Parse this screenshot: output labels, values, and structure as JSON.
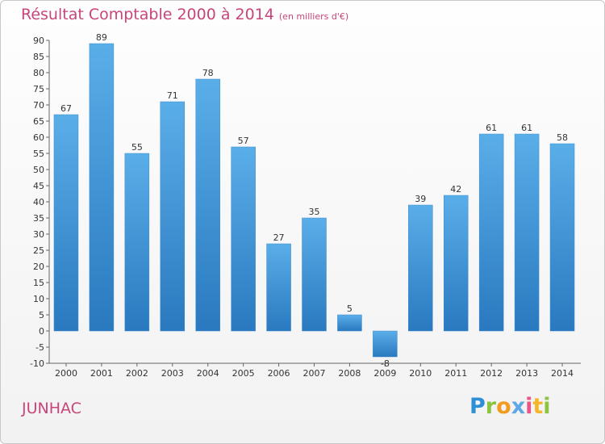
{
  "header": {
    "title": "Résultat Comptable 2000 à 2014",
    "subtitle": "(en milliers d'€)"
  },
  "footer": {
    "place": "JUNHAC",
    "logo_letters": [
      "P",
      "r",
      "o",
      "x",
      "i",
      "t",
      "i"
    ]
  },
  "colors": {
    "bar_top": "#5aaee8",
    "bar_bottom": "#2a79c0",
    "title": "#c8457b"
  },
  "chart_data": {
    "type": "bar",
    "title": "Résultat Comptable 2000 à 2014",
    "xlabel": "",
    "ylabel": "",
    "categories": [
      "2000",
      "2001",
      "2002",
      "2003",
      "2004",
      "2005",
      "2006",
      "2007",
      "2008",
      "2009",
      "2010",
      "2011",
      "2012",
      "2013",
      "2014"
    ],
    "values": [
      67,
      89,
      55,
      71,
      78,
      57,
      27,
      35,
      5,
      -8,
      39,
      42,
      61,
      61,
      58
    ],
    "ylim": [
      -10,
      90
    ],
    "yticks": [
      -10,
      -5,
      0,
      5,
      10,
      15,
      20,
      25,
      30,
      35,
      40,
      45,
      50,
      55,
      60,
      65,
      70,
      75,
      80,
      85,
      90
    ],
    "grid": false,
    "legend": "none"
  }
}
